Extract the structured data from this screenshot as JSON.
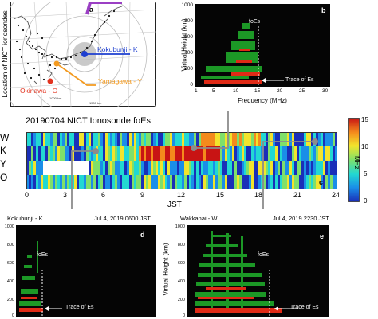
{
  "panel_a": {
    "label": "a",
    "ylabel": "Location of NICT ionosondes",
    "scale_1": "1000 km",
    "scale_2": "1500 km",
    "scale_3": "1500 km",
    "stations": [
      {
        "name": "Kokubunji - K",
        "color": "#1e3fd0"
      },
      {
        "name": "Yamagawa - Y",
        "color": "#f39a1f"
      },
      {
        "name": "Okinawa - O",
        "color": "#e2331f"
      },
      {
        "name": "Wakkanai - W",
        "color": "#9b3fc4"
      }
    ]
  },
  "panel_b": {
    "label": "b",
    "ylabel": "Virtual Height (km)",
    "xlabel": "Frequency (MHz)",
    "yticks": [
      "0",
      "200",
      "400",
      "600",
      "800",
      "1000"
    ],
    "xticks": [
      "1",
      "5",
      "10",
      "15",
      "20",
      "25",
      "30"
    ],
    "foes_label": "foEs",
    "trace_label": "Trace of Es"
  },
  "panel_c": {
    "label": "c",
    "title": "20190704 NICT Ionosonde foEs",
    "rows": [
      "W",
      "K",
      "Y",
      "O"
    ],
    "xlabel": "JST",
    "xticks": [
      "0",
      "3",
      "6",
      "9",
      "12",
      "15",
      "18",
      "21",
      "24"
    ],
    "colorbar_label": "MHz",
    "colorbar_ticks": [
      "15",
      "10",
      "5",
      "0"
    ]
  },
  "panel_d": {
    "label": "d",
    "station": "Kokubunji - K",
    "time": "Jul 4, 2019 0600 JST",
    "ylabel": "Virtual Height (km)",
    "yticks": [
      "0",
      "200",
      "400",
      "600",
      "800",
      "1000"
    ],
    "foes_label": "foEs",
    "trace_label": "Trace of Es"
  },
  "panel_e": {
    "label": "e",
    "station": "Wakkanai - W",
    "time": "Jul 4, 2019 2230 JST",
    "ylabel": "Virtual Height (km)",
    "yticks": [
      "0",
      "200",
      "400",
      "600",
      "800",
      "1000"
    ],
    "foes_label": "foEs",
    "trace_label": "Trace of Es"
  },
  "colors": {
    "ionogram_bg": "#050505",
    "echo_green": "#1fa82a",
    "echo_red": "#e02a16",
    "connector": "#8c8c8c"
  }
}
